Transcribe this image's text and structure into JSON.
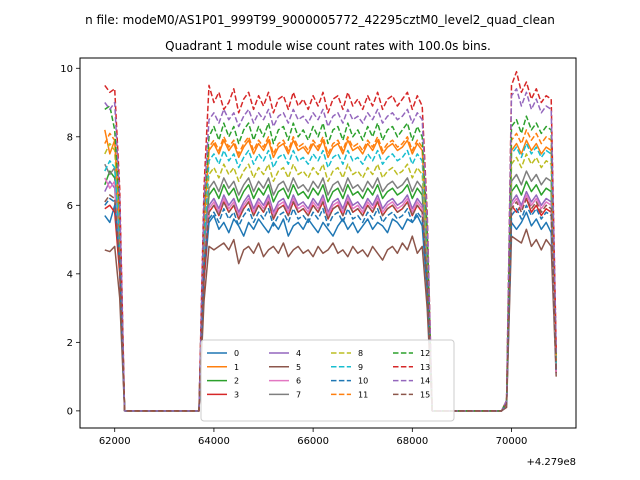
{
  "chart_data": {
    "type": "line",
    "suptitle": "n file: modeM0/AS1P01_999T99_9000005772_42295cztM0_level2_quad_clean",
    "title": "Quadrant 1 module wise count rates with 100.0s bins.",
    "xlabel": "",
    "ylabel": "",
    "x_offset_label": "+4.279e8",
    "xlim": [
      61300,
      71300
    ],
    "ylim": [
      -0.5,
      10.3
    ],
    "x_ticks": [
      62000,
      64000,
      66000,
      68000,
      70000
    ],
    "x_tick_labels": [
      "62000",
      "64000",
      "66000",
      "68000",
      "70000"
    ],
    "y_ticks": [
      0,
      2,
      4,
      6,
      8,
      10
    ],
    "y_tick_labels": [
      "0",
      "2",
      "4",
      "6",
      "8",
      "10"
    ],
    "legend_position": "lower-center",
    "legend_columns": 4,
    "x": [
      61800,
      61900,
      62000,
      62100,
      62200,
      62300,
      63700,
      63800,
      63900,
      64000,
      64100,
      64200,
      64300,
      64400,
      64500,
      64600,
      64700,
      64800,
      64900,
      65000,
      65100,
      65200,
      65300,
      65400,
      65500,
      65600,
      65700,
      65800,
      65900,
      66000,
      66100,
      66200,
      66300,
      66400,
      66500,
      66600,
      66700,
      66800,
      66900,
      67000,
      67100,
      67200,
      67300,
      67400,
      67500,
      67600,
      67700,
      67800,
      67900,
      68000,
      68100,
      68200,
      68300,
      68400,
      69800,
      69900,
      70000,
      70100,
      70200,
      70300,
      70400,
      70500,
      70600,
      70700,
      70800,
      70900
    ],
    "series": [
      {
        "name": "0",
        "color": "#1f77b4",
        "style": "solid",
        "values": [
          5.7,
          5.5,
          6.0,
          4.2,
          0,
          0,
          0,
          3.8,
          5.5,
          5.7,
          5.3,
          5.5,
          5.2,
          5.6,
          5.4,
          5.1,
          5.5,
          5.3,
          5.6,
          5.4,
          5.2,
          5.5,
          5.3,
          5.6,
          5.1,
          5.4,
          5.5,
          5.3,
          5.6,
          5.4,
          5.2,
          5.5,
          5.3,
          5.1,
          5.4,
          5.6,
          5.3,
          5.5,
          5.2,
          5.4,
          5.6,
          5.3,
          5.5,
          5.4,
          5.2,
          5.6,
          5.5,
          5.3,
          5.6,
          5.5,
          5.7,
          5.4,
          3.5,
          0,
          0,
          0.2,
          5.5,
          5.3,
          5.5,
          5.8,
          5.4,
          5.6,
          5.3,
          5.5,
          5.2,
          1.2
        ]
      },
      {
        "name": "1",
        "color": "#ff7f0e",
        "style": "solid",
        "values": [
          8.2,
          7.5,
          7.9,
          5.5,
          0,
          0,
          0,
          5.5,
          7.6,
          7.8,
          7.5,
          7.9,
          7.6,
          7.8,
          7.4,
          7.7,
          7.9,
          7.5,
          7.8,
          7.6,
          7.9,
          7.4,
          7.7,
          7.8,
          7.5,
          7.9,
          7.6,
          7.7,
          7.5,
          7.8,
          7.6,
          7.9,
          7.4,
          7.7,
          7.8,
          7.5,
          7.9,
          7.6,
          7.7,
          7.5,
          7.8,
          7.6,
          7.9,
          7.5,
          7.7,
          7.8,
          7.6,
          7.7,
          7.9,
          7.5,
          7.8,
          7.6,
          5.0,
          0,
          0,
          0.3,
          7.6,
          7.8,
          7.5,
          7.9,
          7.6,
          7.8,
          7.5,
          7.7,
          7.6,
          1.5
        ]
      },
      {
        "name": "2",
        "color": "#2ca02c",
        "style": "solid",
        "values": [
          6.6,
          7.0,
          6.8,
          4.8,
          0,
          0,
          0,
          4.6,
          6.3,
          6.5,
          6.2,
          6.6,
          6.3,
          6.5,
          6.1,
          6.4,
          6.6,
          6.2,
          6.5,
          6.3,
          6.6,
          6.1,
          6.4,
          6.5,
          6.2,
          6.6,
          6.3,
          6.4,
          6.2,
          6.5,
          6.3,
          6.6,
          6.1,
          6.4,
          6.5,
          6.2,
          6.6,
          6.3,
          6.4,
          6.2,
          6.5,
          6.3,
          6.6,
          6.2,
          6.4,
          6.5,
          6.3,
          6.4,
          6.6,
          6.2,
          6.5,
          6.3,
          4.2,
          0,
          0,
          0.2,
          6.4,
          6.6,
          6.3,
          6.7,
          6.4,
          6.6,
          6.3,
          6.5,
          6.4,
          1.3
        ]
      },
      {
        "name": "3",
        "color": "#d62728",
        "style": "solid",
        "values": [
          5.9,
          6.0,
          5.8,
          4.0,
          0,
          0,
          0,
          3.8,
          5.8,
          6.0,
          5.7,
          6.1,
          5.8,
          6.0,
          5.6,
          5.9,
          6.1,
          5.7,
          6.0,
          5.8,
          6.1,
          5.6,
          5.9,
          6.0,
          5.7,
          6.1,
          5.8,
          5.9,
          5.7,
          6.0,
          5.8,
          6.1,
          5.6,
          5.9,
          6.0,
          5.7,
          6.1,
          5.8,
          5.9,
          5.7,
          6.0,
          5.8,
          6.1,
          5.7,
          5.9,
          6.0,
          5.8,
          5.9,
          6.1,
          5.7,
          6.0,
          5.8,
          3.8,
          0,
          0,
          0.2,
          6.0,
          5.8,
          6.0,
          6.2,
          5.8,
          6.0,
          5.7,
          5.9,
          5.8,
          1.1
        ]
      },
      {
        "name": "4",
        "color": "#9467bd",
        "style": "solid",
        "values": [
          6.4,
          6.7,
          6.5,
          4.5,
          0,
          0,
          0,
          4.4,
          6.0,
          6.2,
          5.9,
          6.3,
          6.0,
          6.2,
          5.8,
          6.1,
          6.3,
          5.9,
          6.2,
          6.0,
          6.3,
          5.8,
          6.1,
          6.2,
          5.9,
          6.3,
          6.0,
          6.1,
          5.9,
          6.2,
          6.0,
          6.3,
          5.8,
          6.1,
          6.2,
          5.9,
          6.3,
          6.0,
          6.1,
          5.9,
          6.2,
          6.0,
          6.3,
          5.9,
          6.1,
          6.2,
          6.0,
          6.1,
          6.3,
          5.9,
          6.2,
          6.0,
          4.0,
          0,
          0,
          0.2,
          6.1,
          6.3,
          6.0,
          6.4,
          6.1,
          6.3,
          6.0,
          6.2,
          6.1,
          1.2
        ]
      },
      {
        "name": "5",
        "color": "#8c564b",
        "style": "solid",
        "values": [
          4.7,
          4.65,
          4.8,
          3.3,
          0,
          0,
          0,
          3.2,
          4.8,
          4.7,
          4.8,
          4.9,
          4.7,
          5.0,
          4.3,
          4.7,
          4.8,
          4.6,
          4.9,
          4.5,
          4.7,
          4.8,
          4.6,
          4.9,
          4.5,
          4.7,
          4.8,
          4.6,
          4.7,
          4.5,
          4.8,
          4.6,
          4.7,
          4.9,
          4.6,
          4.7,
          4.5,
          4.8,
          4.6,
          4.7,
          4.5,
          4.8,
          4.6,
          4.4,
          4.7,
          4.8,
          4.6,
          4.9,
          4.7,
          5.1,
          4.6,
          4.8,
          3.0,
          0,
          0,
          0.1,
          5.1,
          5.0,
          4.9,
          5.3,
          4.8,
          5.0,
          4.7,
          5.0,
          4.8,
          1.0
        ]
      },
      {
        "name": "6",
        "color": "#e377c2",
        "style": "solid",
        "values": [
          6.8,
          6.5,
          6.7,
          4.6,
          0,
          0,
          0,
          4.4,
          5.9,
          6.1,
          5.8,
          6.2,
          5.9,
          6.1,
          5.7,
          6.0,
          6.2,
          5.8,
          6.1,
          5.9,
          6.2,
          5.7,
          6.0,
          6.1,
          5.8,
          6.2,
          5.9,
          6.0,
          5.8,
          6.1,
          5.9,
          6.2,
          5.7,
          6.0,
          6.1,
          5.8,
          6.2,
          5.9,
          6.0,
          5.8,
          6.1,
          5.9,
          6.2,
          5.8,
          6.0,
          6.1,
          5.9,
          6.0,
          6.2,
          5.8,
          6.1,
          5.9,
          3.9,
          0,
          0,
          0.2,
          6.0,
          6.2,
          5.9,
          6.3,
          6.0,
          6.2,
          5.9,
          6.1,
          6.0,
          1.1
        ]
      },
      {
        "name": "7",
        "color": "#7f7f7f",
        "style": "solid",
        "values": [
          7.2,
          6.9,
          7.1,
          4.9,
          0,
          0,
          0,
          4.8,
          6.5,
          6.7,
          6.4,
          6.8,
          6.5,
          6.7,
          6.3,
          6.6,
          6.8,
          6.4,
          6.7,
          6.5,
          6.8,
          6.3,
          6.6,
          6.7,
          6.4,
          6.8,
          6.5,
          6.6,
          6.4,
          6.7,
          6.5,
          6.8,
          6.3,
          6.6,
          6.7,
          6.4,
          6.8,
          6.5,
          6.6,
          6.4,
          6.7,
          6.5,
          6.8,
          6.4,
          6.6,
          6.7,
          6.5,
          6.6,
          6.8,
          6.4,
          6.7,
          6.5,
          4.3,
          0,
          0,
          0.2,
          6.7,
          6.9,
          6.6,
          7.0,
          6.7,
          6.9,
          6.6,
          6.8,
          6.7,
          1.3
        ]
      },
      {
        "name": "8",
        "color": "#bcbd22",
        "style": "dashed",
        "values": [
          7.5,
          7.8,
          7.6,
          5.3,
          0,
          0,
          0,
          5.2,
          6.9,
          7.1,
          6.8,
          7.2,
          6.9,
          7.1,
          6.7,
          7.0,
          7.2,
          6.8,
          7.1,
          6.9,
          7.2,
          6.7,
          7.0,
          7.1,
          6.8,
          7.2,
          6.9,
          7.0,
          6.8,
          7.1,
          6.9,
          7.2,
          6.7,
          7.0,
          7.1,
          6.8,
          7.2,
          6.9,
          7.0,
          6.8,
          7.1,
          6.9,
          7.2,
          6.8,
          7.0,
          7.1,
          6.9,
          7.0,
          7.2,
          6.8,
          7.1,
          6.9,
          4.6,
          0,
          0,
          0.2,
          7.2,
          7.4,
          7.1,
          7.5,
          7.2,
          7.4,
          7.1,
          7.3,
          7.2,
          1.4
        ]
      },
      {
        "name": "9",
        "color": "#17becf",
        "style": "dashed",
        "values": [
          7.0,
          7.3,
          7.1,
          5.0,
          0,
          0,
          0,
          4.9,
          7.3,
          7.5,
          7.2,
          7.6,
          7.3,
          7.5,
          7.1,
          7.4,
          7.6,
          7.2,
          7.5,
          7.3,
          7.6,
          7.1,
          7.4,
          7.5,
          7.2,
          7.6,
          7.3,
          7.4,
          7.2,
          7.5,
          7.3,
          7.6,
          7.1,
          7.4,
          7.5,
          7.2,
          7.6,
          7.3,
          7.4,
          7.2,
          7.5,
          7.3,
          7.6,
          7.2,
          7.4,
          7.5,
          7.3,
          7.4,
          7.6,
          7.2,
          7.5,
          7.3,
          4.8,
          0,
          0,
          0.3,
          7.5,
          7.7,
          7.4,
          7.8,
          7.5,
          7.7,
          7.4,
          7.6,
          7.5,
          1.4
        ]
      },
      {
        "name": "10",
        "color": "#1f77b4",
        "style": "dashed",
        "values": [
          6.0,
          6.2,
          6.1,
          4.3,
          0,
          0,
          0,
          4.2,
          5.6,
          5.8,
          5.5,
          5.9,
          5.6,
          5.8,
          5.4,
          5.7,
          5.9,
          5.5,
          5.8,
          5.6,
          5.9,
          5.4,
          5.7,
          5.8,
          5.5,
          5.9,
          5.6,
          5.7,
          5.5,
          5.8,
          5.6,
          5.9,
          5.4,
          5.7,
          5.8,
          5.5,
          5.9,
          5.6,
          5.7,
          5.5,
          5.8,
          5.6,
          5.9,
          5.5,
          5.7,
          5.8,
          5.6,
          5.7,
          5.9,
          5.5,
          5.8,
          5.6,
          3.7,
          0,
          0,
          0.2,
          5.7,
          5.9,
          5.6,
          6.0,
          5.7,
          5.9,
          5.6,
          5.8,
          5.7,
          1.1
        ]
      },
      {
        "name": "11",
        "color": "#ff7f0e",
        "style": "dashed",
        "values": [
          7.8,
          8.1,
          7.9,
          5.5,
          0,
          0,
          0,
          5.4,
          7.7,
          7.9,
          7.6,
          8.0,
          7.7,
          7.9,
          7.5,
          7.8,
          8.0,
          7.6,
          7.9,
          7.7,
          8.0,
          7.5,
          7.8,
          7.9,
          7.6,
          8.0,
          7.7,
          7.8,
          7.6,
          7.9,
          7.7,
          8.0,
          7.5,
          7.8,
          7.9,
          7.6,
          8.0,
          7.7,
          7.8,
          7.6,
          7.9,
          7.7,
          8.0,
          7.6,
          7.8,
          7.9,
          7.7,
          7.8,
          8.0,
          7.6,
          7.9,
          7.7,
          5.1,
          0,
          0,
          0.3,
          7.9,
          8.1,
          7.8,
          8.2,
          7.9,
          8.1,
          7.8,
          8.0,
          7.9,
          1.5
        ]
      },
      {
        "name": "12",
        "color": "#2ca02c",
        "style": "dashed",
        "values": [
          8.8,
          8.9,
          8.2,
          5.9,
          0,
          0,
          0,
          5.9,
          8.0,
          8.3,
          7.9,
          8.4,
          8.0,
          8.3,
          7.8,
          8.2,
          8.4,
          7.9,
          8.3,
          8.0,
          8.4,
          7.8,
          8.2,
          8.3,
          7.9,
          8.4,
          8.0,
          8.2,
          7.9,
          8.3,
          8.0,
          8.4,
          7.8,
          8.2,
          8.3,
          7.9,
          8.4,
          8.0,
          8.2,
          7.9,
          8.3,
          8.0,
          8.4,
          7.9,
          8.2,
          8.3,
          8.0,
          8.2,
          8.4,
          7.9,
          8.3,
          8.0,
          5.3,
          0,
          0,
          0.3,
          8.3,
          8.5,
          8.1,
          8.6,
          8.2,
          8.4,
          8.1,
          8.3,
          8.2,
          1.6
        ]
      },
      {
        "name": "13",
        "color": "#d62728",
        "style": "dashed",
        "values": [
          9.5,
          9.3,
          9.4,
          6.5,
          0,
          0,
          0,
          6.5,
          9.5,
          9.0,
          9.3,
          8.8,
          9.0,
          9.4,
          8.7,
          9.1,
          9.3,
          8.8,
          9.2,
          8.9,
          9.3,
          8.7,
          9.1,
          9.2,
          8.8,
          9.3,
          8.9,
          9.1,
          8.8,
          9.2,
          8.9,
          9.3,
          8.7,
          9.1,
          9.2,
          8.8,
          9.3,
          8.9,
          9.1,
          8.8,
          9.2,
          8.9,
          9.3,
          8.8,
          9.1,
          9.2,
          8.9,
          9.1,
          9.3,
          8.8,
          9.2,
          8.9,
          5.8,
          0,
          0,
          0.3,
          9.5,
          9.9,
          9.3,
          9.6,
          9.1,
          9.4,
          9.0,
          9.2,
          9.1,
          1.8
        ]
      },
      {
        "name": "14",
        "color": "#9467bd",
        "style": "dashed",
        "values": [
          9.0,
          8.8,
          9.0,
          6.2,
          0,
          0,
          0,
          6.1,
          8.5,
          8.7,
          8.4,
          8.8,
          8.5,
          8.7,
          8.3,
          8.6,
          8.8,
          8.4,
          8.7,
          8.5,
          8.8,
          8.3,
          8.6,
          8.7,
          8.4,
          8.8,
          8.5,
          8.6,
          8.4,
          8.7,
          8.5,
          8.8,
          8.3,
          8.6,
          8.7,
          8.4,
          8.8,
          8.5,
          8.6,
          8.4,
          8.7,
          8.5,
          8.8,
          8.4,
          8.6,
          8.7,
          8.5,
          8.6,
          8.8,
          8.4,
          8.7,
          8.5,
          5.6,
          0,
          0,
          0.3,
          9.2,
          9.4,
          8.9,
          9.3,
          8.8,
          9.1,
          8.7,
          8.9,
          8.8,
          1.7
        ]
      },
      {
        "name": "15",
        "color": "#8c564b",
        "style": "dashed",
        "values": [
          6.1,
          6.3,
          6.2,
          4.3,
          0,
          0,
          0,
          4.2,
          5.8,
          6.0,
          5.7,
          6.1,
          5.8,
          6.0,
          5.6,
          5.9,
          6.1,
          5.7,
          6.0,
          5.8,
          6.1,
          5.6,
          5.9,
          6.0,
          5.7,
          6.1,
          5.8,
          5.9,
          5.7,
          6.0,
          5.8,
          6.1,
          5.6,
          5.9,
          6.0,
          5.7,
          6.1,
          5.8,
          5.9,
          5.7,
          6.0,
          5.8,
          6.1,
          5.7,
          5.9,
          6.0,
          5.8,
          5.9,
          6.1,
          5.7,
          6.0,
          5.8,
          3.8,
          0,
          0,
          0.2,
          5.9,
          6.1,
          5.8,
          6.2,
          5.9,
          6.1,
          5.8,
          6.0,
          5.9,
          1.1
        ]
      }
    ]
  }
}
